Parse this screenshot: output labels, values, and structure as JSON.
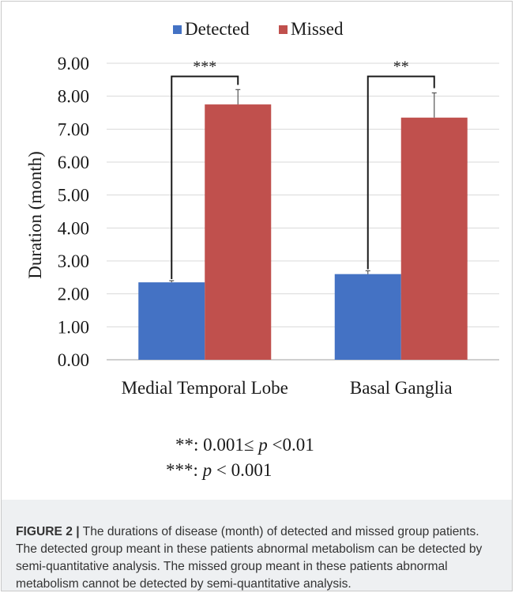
{
  "chart_data": {
    "type": "bar",
    "categories": [
      "Medial Temporal Lobe",
      "Basal Ganglia"
    ],
    "series": [
      {
        "name": "Detected",
        "values": [
          2.35,
          2.6
        ],
        "errors": [
          0.05,
          0.1
        ],
        "color": "#4472c4"
      },
      {
        "name": "Missed",
        "values": [
          7.75,
          7.35
        ],
        "errors": [
          0.45,
          0.75
        ],
        "color": "#c0504d"
      }
    ],
    "ylabel": "Duration (month)",
    "ylim": [
      0,
      9
    ],
    "yticks": [
      "0.00",
      "1.00",
      "2.00",
      "3.00",
      "4.00",
      "5.00",
      "6.00",
      "7.00",
      "8.00",
      "9.00"
    ],
    "grid": true,
    "legend": "top",
    "significance": [
      "***",
      "**"
    ]
  },
  "notes": {
    "line1_prefix": "**:  0.001≤ ",
    "line1_p": "p",
    "line1_suffix": " <0.01",
    "line2_prefix": "***:  ",
    "line2_p": "p",
    "line2_suffix": " < 0.001"
  },
  "caption": {
    "label": "FIGURE 2 |",
    "text": " The durations of disease (month) of detected and missed group patients. The detected group meant in these patients abnormal metabolism can be detected by semi-quantitative analysis. The missed group meant in these patients abnormal metabolism cannot be detected by semi-quantitative analysis."
  }
}
